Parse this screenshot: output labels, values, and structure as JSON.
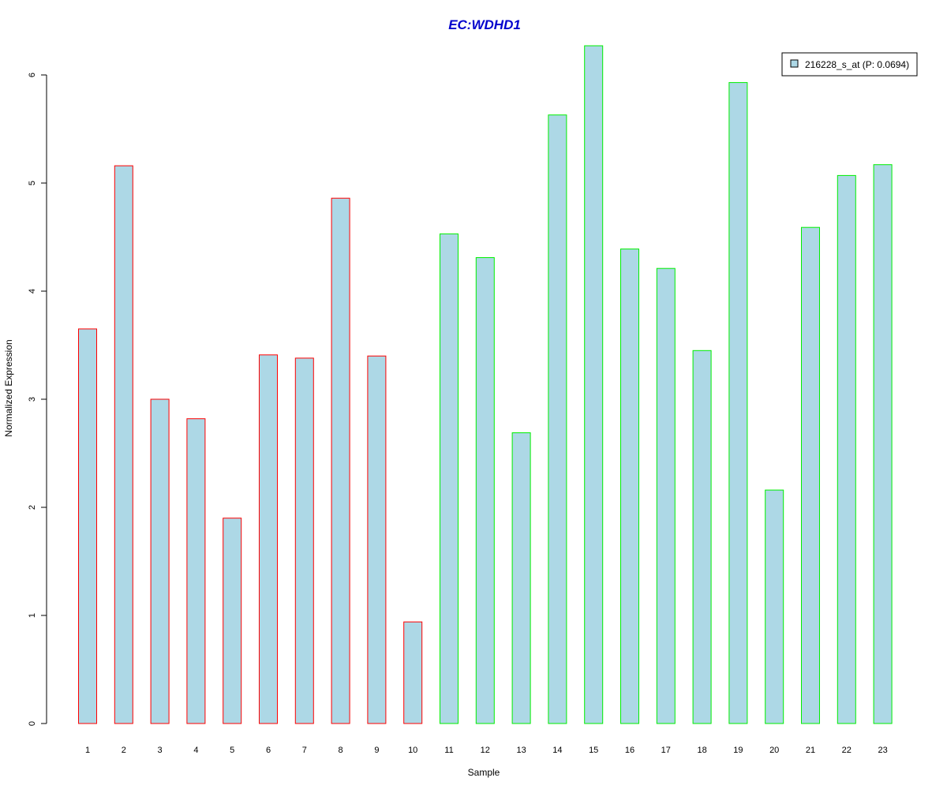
{
  "chart_data": {
    "type": "bar",
    "title": "EC:WDHD1",
    "xlabel": "Sample",
    "ylabel": "Normalized Expression",
    "ylim": [
      0,
      6.27
    ],
    "yticks": [
      0,
      1,
      2,
      3,
      4,
      5,
      6
    ],
    "grid": false,
    "legend_position": "top-right",
    "categories": [
      "1",
      "2",
      "3",
      "4",
      "5",
      "6",
      "7",
      "8",
      "9",
      "10",
      "11",
      "12",
      "13",
      "14",
      "15",
      "16",
      "17",
      "18",
      "19",
      "20",
      "21",
      "22",
      "23"
    ],
    "series": [
      {
        "name": "216228_s_at (P: 0.0694)",
        "values": [
          3.65,
          5.16,
          3.0,
          2.82,
          1.9,
          3.41,
          3.38,
          4.86,
          3.4,
          0.94,
          4.53,
          4.31,
          2.69,
          5.63,
          6.27,
          4.39,
          4.21,
          3.45,
          5.93,
          2.16,
          4.59,
          5.07,
          5.17
        ],
        "groups": [
          "a",
          "a",
          "a",
          "a",
          "a",
          "a",
          "a",
          "a",
          "a",
          "a",
          "b",
          "b",
          "b",
          "b",
          "b",
          "b",
          "b",
          "b",
          "b",
          "b",
          "b",
          "b",
          "b"
        ]
      }
    ]
  },
  "colors": {
    "title": "#0000cd",
    "bar_fill": "#add8e6",
    "group_a_border": "#ff0000",
    "group_b_border": "#00ee00",
    "axis": "#000000"
  }
}
